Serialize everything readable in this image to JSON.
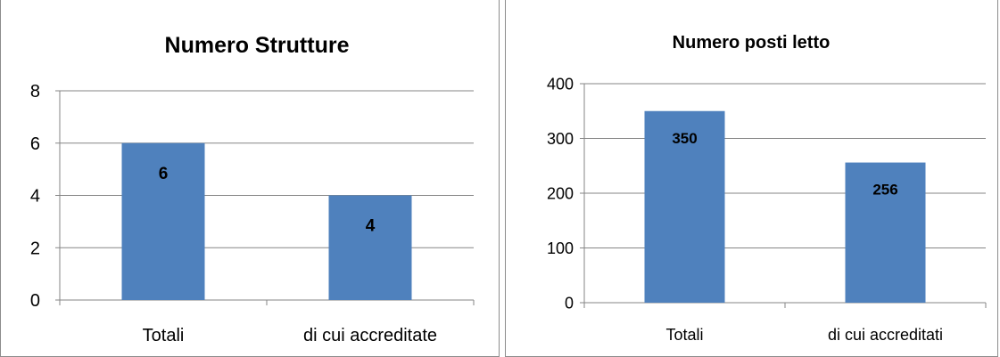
{
  "colors": {
    "bar": "#4F81BD",
    "grid": "#868686",
    "axis": "#868686",
    "text": "#000000"
  },
  "chart_data": [
    {
      "type": "bar",
      "title": "Numero Strutture",
      "categories": [
        "Totali",
        "di cui accreditate"
      ],
      "values": [
        6,
        4
      ],
      "value_labels": [
        "6",
        "4"
      ],
      "y_ticks": [
        "0",
        "2",
        "4",
        "6",
        "8"
      ],
      "ylim": [
        0,
        8
      ],
      "xlabel": "",
      "ylabel": "",
      "grid": true,
      "legend": "none"
    },
    {
      "type": "bar",
      "title": "Numero posti letto",
      "categories": [
        "Totali",
        "di cui accreditati"
      ],
      "values": [
        350,
        256
      ],
      "value_labels": [
        "350",
        "256"
      ],
      "y_ticks": [
        "0",
        "100",
        "200",
        "300",
        "400"
      ],
      "ylim": [
        0,
        400
      ],
      "xlabel": "",
      "ylabel": "",
      "grid": true,
      "legend": "none"
    }
  ]
}
